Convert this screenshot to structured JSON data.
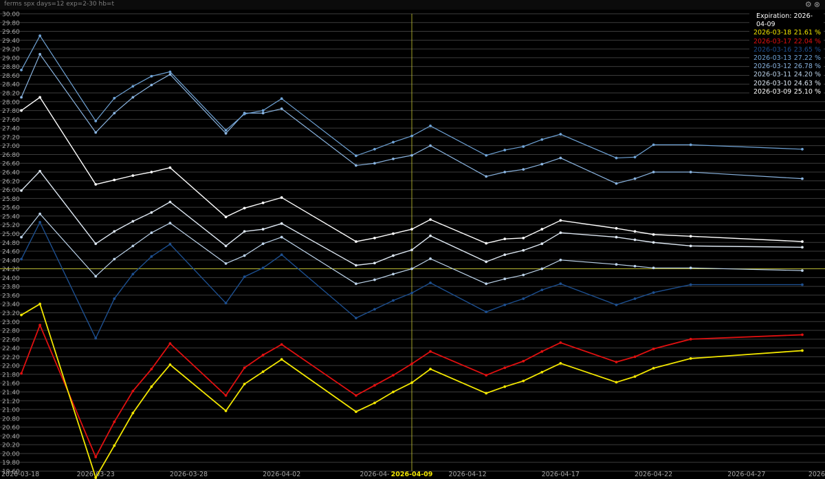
{
  "window": {
    "command": "ferms spx days=12 exp=2-30 hb=t",
    "icons": [
      "settings-icon",
      "close-icon"
    ]
  },
  "legend": {
    "header": "Expiration: 2026-04-09",
    "items": [
      {
        "date": "2026-03-18",
        "value": "21.61 %",
        "color": "#f2e600"
      },
      {
        "date": "2026-03-17",
        "value": "22.04 %",
        "color": "#e01010"
      },
      {
        "date": "2026-03-16",
        "value": "23.65 %",
        "color": "#1d4f8f"
      },
      {
        "date": "2026-03-13",
        "value": "27.22 %",
        "color": "#6fa3d6"
      },
      {
        "date": "2026-03-12",
        "value": "26.78 %",
        "color": "#8ab4e0"
      },
      {
        "date": "2026-03-11",
        "value": "24.20 %",
        "color": "#bcd3ea"
      },
      {
        "date": "2026-03-10",
        "value": "24.63 %",
        "color": "#dde7f2"
      },
      {
        "date": "2026-03-09",
        "value": "25.10 %",
        "color": "#ffffff"
      }
    ]
  },
  "chart_data": {
    "type": "line",
    "title": "",
    "xlabel": "",
    "ylabel": "",
    "y_range": [
      19.6,
      30.0
    ],
    "y_tick_step": 0.2,
    "y_tick_labels": [
      "19.60",
      "19.80",
      "20.00",
      "20.20",
      "20.40",
      "20.60",
      "20.80",
      "21.00",
      "21.20",
      "21.40",
      "21.60",
      "21.80",
      "22.00",
      "22.20",
      "22.40",
      "22.60",
      "22.80",
      "23.00",
      "23.20",
      "23.40",
      "23.60",
      "23.80",
      "24.00",
      "24.20",
      "24.40",
      "24.60",
      "24.80",
      "25.00",
      "25.20",
      "25.40",
      "25.60",
      "25.80",
      "26.00",
      "26.20",
      "26.40",
      "26.60",
      "26.80",
      "27.00",
      "27.20",
      "27.40",
      "27.60",
      "27.80",
      "28.00",
      "28.20",
      "28.40",
      "28.60",
      "28.80",
      "29.00",
      "29.20",
      "29.40",
      "29.60",
      "29.80",
      "30.00"
    ],
    "x_range": [
      "2026-03-18",
      "2026-05-01"
    ],
    "x_tick_labels": [
      {
        "date": "2026-03-18",
        "label": "2026-03-18"
      },
      {
        "date": "2026-03-23",
        "label": "2026-03-23"
      },
      {
        "date": "2026-03-28",
        "label": "2026-03-28"
      },
      {
        "date": "2026-04-02",
        "label": "2026-04-02"
      },
      {
        "date": "2026-04-07",
        "label": "2026-04-"
      },
      {
        "date": "2026-04-12",
        "label": "2026-04-12"
      },
      {
        "date": "2026-04-17",
        "label": "2026-04-17"
      },
      {
        "date": "2026-04-22",
        "label": "2026-04-22"
      },
      {
        "date": "2026-04-27",
        "label": "2026-04-27"
      },
      {
        "date": "2026-05-01",
        "label": "2026"
      }
    ],
    "crosshair": {
      "x": "2026-04-09",
      "x_label": "2026-04-09",
      "y": 24.2,
      "color": "#c8c832"
    },
    "grid": true,
    "legend_position": "top-right",
    "x": [
      "2026-03-19",
      "2026-03-20",
      "2026-03-23",
      "2026-03-24",
      "2026-03-25",
      "2026-03-26",
      "2026-03-27",
      "2026-03-30",
      "2026-03-31",
      "2026-04-01",
      "2026-04-02",
      "2026-04-06",
      "2026-04-07",
      "2026-04-08",
      "2026-04-09",
      "2026-04-10",
      "2026-04-13",
      "2026-04-14",
      "2026-04-15",
      "2026-04-16",
      "2026-04-17",
      "2026-04-20",
      "2026-04-21",
      "2026-04-22",
      "2026-04-24",
      "2026-04-30"
    ],
    "series": [
      {
        "name": "2026-03-18",
        "color": "#f2e600",
        "width": 1.8,
        "values": [
          23.15,
          23.4,
          null,
          null,
          null,
          null,
          null,
          null,
          null,
          null,
          null,
          null,
          null,
          null,
          null,
          null,
          null,
          null,
          null,
          null,
          null,
          null,
          null,
          null,
          null,
          null
        ]
      },
      {
        "name": "2026-03-17",
        "color": "#e01010",
        "width": 1.8,
        "values": [
          21.82,
          22.92,
          19.92,
          20.72,
          21.42,
          21.92,
          22.5,
          21.32,
          21.95,
          22.24,
          22.48,
          21.32,
          21.55,
          21.78,
          22.04,
          22.32,
          21.78,
          21.95,
          22.1,
          22.32,
          22.52,
          22.08,
          22.2,
          22.38,
          22.6,
          22.7
        ]
      },
      {
        "name": "2026-03-16",
        "color": "#1d4f8f",
        "width": 1.4,
        "values": [
          24.42,
          25.26,
          22.62,
          23.52,
          24.08,
          24.48,
          24.76,
          23.42,
          24.02,
          24.22,
          24.52,
          23.08,
          23.28,
          23.48,
          23.65,
          23.88,
          23.22,
          23.38,
          23.52,
          23.72,
          23.86,
          23.38,
          23.52,
          23.66,
          23.84,
          23.84
        ]
      },
      {
        "name": "2026-03-13",
        "color": "#6fa3d6",
        "width": 1.2,
        "values": [
          28.72,
          29.5,
          27.56,
          28.08,
          28.35,
          28.58,
          28.68,
          27.35,
          27.72,
          27.8,
          28.07,
          26.77,
          26.92,
          27.08,
          27.22,
          27.45,
          26.78,
          26.9,
          26.98,
          27.14,
          27.26,
          26.72,
          26.74,
          27.02,
          27.02,
          26.92
        ]
      },
      {
        "name": "2026-03-12",
        "color": "#8ab4e0",
        "width": 1.2,
        "values": [
          28.1,
          29.08,
          27.3,
          27.74,
          28.1,
          28.38,
          28.62,
          27.28,
          27.74,
          27.74,
          27.84,
          26.55,
          26.6,
          26.7,
          26.78,
          27.0,
          26.3,
          26.4,
          26.46,
          26.58,
          26.72,
          26.14,
          26.25,
          26.4,
          26.4,
          26.25
        ]
      },
      {
        "name": "2026-03-11",
        "color": "#bcd3ea",
        "width": 1.2,
        "values": [
          24.92,
          25.45,
          24.03,
          24.42,
          24.72,
          25.02,
          25.24,
          24.32,
          24.5,
          24.77,
          24.92,
          23.86,
          23.95,
          24.08,
          24.2,
          24.43,
          23.86,
          23.97,
          24.06,
          24.2,
          24.4,
          24.3,
          24.26,
          24.22,
          24.22,
          24.16
        ]
      },
      {
        "name": "2026-03-10",
        "color": "#dde7f2",
        "width": 1.4,
        "values": [
          25.98,
          26.42,
          24.77,
          25.05,
          25.28,
          25.48,
          25.72,
          24.72,
          25.05,
          25.1,
          25.23,
          24.28,
          24.33,
          24.5,
          24.63,
          24.95,
          24.36,
          24.52,
          24.62,
          24.77,
          25.02,
          24.92,
          24.86,
          24.8,
          24.72,
          24.69
        ]
      },
      {
        "name": "2026-03-09",
        "color": "#ffffff",
        "width": 1.4,
        "values": [
          27.8,
          28.1,
          26.12,
          26.22,
          26.32,
          26.4,
          26.5,
          25.38,
          25.58,
          25.7,
          25.82,
          24.82,
          24.9,
          25.0,
          25.1,
          25.32,
          24.78,
          24.88,
          24.9,
          25.1,
          25.3,
          25.12,
          25.05,
          24.98,
          24.94,
          24.82
        ]
      }
    ],
    "yellow_extension": {
      "series": "2026-03-18",
      "comment_free": true,
      "values": [
        null,
        null,
        19.45,
        20.18,
        20.92,
        21.52,
        22.02,
        20.97,
        21.58,
        21.86,
        22.14,
        20.95,
        21.15,
        21.4,
        21.61,
        21.92,
        21.37,
        21.52,
        21.65,
        21.85,
        22.05,
        21.62,
        21.75,
        21.94,
        22.16,
        22.34
      ]
    }
  }
}
